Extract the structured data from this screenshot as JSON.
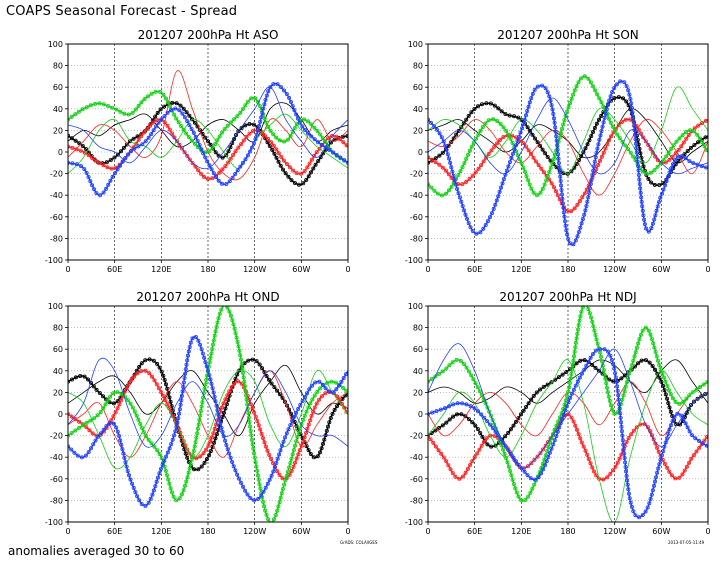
{
  "title": "COAPS Seasonal Forecast - Spread",
  "footnote": "anomalies averaged 30 to 60",
  "credit": "GrADS: COLA/IGES",
  "timestamp": "2013-07-05-11:49",
  "colors": {
    "black": "#000000",
    "red": "#ff2020",
    "green": "#10d010",
    "blue": "#2040ff"
  },
  "chart_data": [
    {
      "type": "line",
      "title_parts": [
        "201207",
        "200hPa Ht",
        "ASO"
      ],
      "xticks": [
        "0",
        "60E",
        "120E",
        "180",
        "120W",
        "60W",
        "0"
      ],
      "yticks": [
        "100",
        "80",
        "60",
        "40",
        "20",
        "0",
        "-20",
        "-40",
        "-60",
        "-80",
        "-100"
      ],
      "ylim": [
        -100,
        100
      ],
      "xlabel": "",
      "ylabel": "",
      "grid": true,
      "series": [
        {
          "name": "black-1",
          "color": "black",
          "marker": "circle",
          "values": [
            15,
            5,
            -10,
            -5,
            10,
            20,
            40,
            45,
            30,
            10,
            -5,
            20,
            25,
            5,
            -20,
            -30,
            -10,
            10,
            15
          ]
        },
        {
          "name": "black-2",
          "color": "black",
          "marker": "none",
          "values": [
            10,
            20,
            15,
            25,
            30,
            35,
            20,
            5,
            10,
            25,
            30,
            20,
            10,
            40,
            45,
            30,
            10,
            20,
            25
          ]
        },
        {
          "name": "red-1",
          "color": "red",
          "marker": "circle",
          "values": [
            5,
            0,
            -10,
            -15,
            0,
            20,
            30,
            10,
            -10,
            -25,
            -15,
            5,
            20,
            10,
            -10,
            -20,
            0,
            15,
            5
          ]
        },
        {
          "name": "red-2",
          "color": "red",
          "marker": "none",
          "values": [
            -5,
            10,
            25,
            20,
            5,
            -5,
            15,
            75,
            40,
            0,
            -20,
            -25,
            -5,
            30,
            20,
            5,
            30,
            10,
            20
          ]
        },
        {
          "name": "green-1",
          "color": "green",
          "marker": "circle",
          "values": [
            30,
            40,
            45,
            40,
            35,
            50,
            55,
            30,
            10,
            0,
            20,
            35,
            50,
            20,
            10,
            30,
            20,
            0,
            -10
          ]
        },
        {
          "name": "green-2",
          "color": "green",
          "marker": "none",
          "values": [
            -20,
            -5,
            20,
            30,
            10,
            5,
            -5,
            10,
            30,
            20,
            0,
            -15,
            10,
            25,
            35,
            20,
            5,
            -5,
            -15
          ]
        },
        {
          "name": "blue-1",
          "color": "blue",
          "marker": "circle",
          "values": [
            -10,
            -15,
            -40,
            -20,
            0,
            10,
            30,
            40,
            20,
            -10,
            -30,
            -15,
            10,
            60,
            55,
            25,
            10,
            0,
            -10
          ]
        },
        {
          "name": "blue-2",
          "color": "blue",
          "marker": "none",
          "values": [
            25,
            20,
            5,
            0,
            -10,
            5,
            20,
            10,
            -10,
            -15,
            0,
            20,
            40,
            60,
            30,
            10,
            -5,
            15,
            30
          ]
        }
      ]
    },
    {
      "type": "line",
      "title_parts": [
        "201207",
        "200hPa Ht",
        "SON"
      ],
      "xticks": [
        "0",
        "60E",
        "120E",
        "180",
        "120W",
        "60W",
        "0"
      ],
      "yticks": [
        "100",
        "80",
        "60",
        "40",
        "20",
        "0",
        "-20",
        "-40",
        "-60",
        "-80",
        "-100"
      ],
      "ylim": [
        -100,
        100
      ],
      "xlabel": "",
      "ylabel": "",
      "grid": true,
      "series": [
        {
          "name": "black-1",
          "color": "black",
          "marker": "circle",
          "values": [
            -10,
            0,
            20,
            40,
            45,
            35,
            30,
            10,
            -10,
            -20,
            0,
            30,
            50,
            40,
            -20,
            -30,
            -10,
            5,
            15
          ]
        },
        {
          "name": "black-2",
          "color": "black",
          "marker": "none",
          "values": [
            20,
            25,
            30,
            20,
            10,
            0,
            10,
            25,
            20,
            10,
            -5,
            0,
            20,
            40,
            30,
            10,
            -10,
            0,
            10
          ]
        },
        {
          "name": "red-1",
          "color": "red",
          "marker": "circle",
          "values": [
            -5,
            -15,
            -30,
            -20,
            0,
            15,
            10,
            -10,
            -30,
            -55,
            -40,
            -10,
            20,
            30,
            10,
            -10,
            0,
            20,
            30
          ]
        },
        {
          "name": "red-2",
          "color": "red",
          "marker": "none",
          "values": [
            10,
            5,
            15,
            30,
            20,
            0,
            -10,
            5,
            20,
            10,
            -20,
            -40,
            -20,
            10,
            30,
            20,
            0,
            -20,
            10
          ]
        },
        {
          "name": "green-1",
          "color": "green",
          "marker": "circle",
          "values": [
            -30,
            -40,
            -20,
            10,
            30,
            20,
            -10,
            -40,
            -10,
            40,
            70,
            50,
            20,
            0,
            -20,
            -10,
            10,
            20,
            0
          ]
        },
        {
          "name": "green-2",
          "color": "green",
          "marker": "none",
          "values": [
            20,
            30,
            25,
            10,
            -5,
            10,
            30,
            20,
            0,
            -20,
            10,
            40,
            30,
            10,
            -10,
            20,
            60,
            40,
            20
          ]
        },
        {
          "name": "blue-1",
          "color": "blue",
          "marker": "circle",
          "values": [
            30,
            10,
            -40,
            -75,
            -60,
            -20,
            20,
            60,
            40,
            -80,
            -60,
            10,
            60,
            50,
            -70,
            -40,
            -5,
            -10,
            -15
          ]
        },
        {
          "name": "blue-2",
          "color": "blue",
          "marker": "none",
          "values": [
            0,
            10,
            20,
            10,
            -10,
            -20,
            0,
            30,
            50,
            30,
            0,
            -20,
            -10,
            20,
            10,
            -10,
            -20,
            -15,
            -10
          ]
        }
      ]
    },
    {
      "type": "line",
      "title_parts": [
        "201207",
        "200hPa Ht",
        "OND"
      ],
      "xticks": [
        "0",
        "60E",
        "120E",
        "180",
        "120W",
        "60W",
        "0"
      ],
      "yticks": [
        "100",
        "80",
        "60",
        "40",
        "20",
        "0",
        "-20",
        "-40",
        "-60",
        "-80",
        "-100"
      ],
      "ylim": [
        -100,
        100
      ],
      "xlabel": "",
      "ylabel": "",
      "grid": true,
      "series": [
        {
          "name": "black-1",
          "color": "black",
          "marker": "circle",
          "values": [
            30,
            35,
            20,
            10,
            30,
            50,
            40,
            -10,
            -50,
            -40,
            0,
            40,
            50,
            30,
            10,
            -20,
            -40,
            0,
            20
          ]
        },
        {
          "name": "black-2",
          "color": "black",
          "marker": "none",
          "values": [
            10,
            20,
            30,
            35,
            20,
            0,
            10,
            30,
            40,
            20,
            0,
            -20,
            10,
            30,
            45,
            20,
            0,
            10,
            5
          ]
        },
        {
          "name": "red-1",
          "color": "red",
          "marker": "circle",
          "values": [
            0,
            -10,
            -20,
            0,
            30,
            40,
            20,
            -10,
            -40,
            -30,
            10,
            30,
            0,
            -40,
            -60,
            -30,
            10,
            20,
            0
          ]
        },
        {
          "name": "red-2",
          "color": "red",
          "marker": "none",
          "values": [
            -10,
            0,
            10,
            -20,
            -40,
            -20,
            10,
            30,
            10,
            -20,
            -40,
            -10,
            20,
            40,
            10,
            -30,
            -10,
            10,
            20
          ]
        },
        {
          "name": "green-1",
          "color": "green",
          "marker": "circle",
          "values": [
            -20,
            -10,
            0,
            20,
            10,
            -20,
            -40,
            -80,
            -40,
            40,
            100,
            60,
            -40,
            -100,
            -60,
            -10,
            20,
            30,
            20
          ]
        },
        {
          "name": "green-2",
          "color": "green",
          "marker": "none",
          "values": [
            20,
            10,
            -20,
            -50,
            -40,
            -10,
            10,
            -10,
            -40,
            -20,
            20,
            40,
            30,
            -10,
            -30,
            0,
            40,
            20,
            0
          ]
        },
        {
          "name": "blue-1",
          "color": "blue",
          "marker": "circle",
          "values": [
            -30,
            -40,
            -20,
            -10,
            -60,
            -85,
            -50,
            -10,
            70,
            40,
            -20,
            -60,
            -80,
            -60,
            -20,
            10,
            30,
            20,
            40
          ]
        },
        {
          "name": "blue-2",
          "color": "blue",
          "marker": "none",
          "values": [
            -10,
            10,
            50,
            40,
            0,
            -30,
            -20,
            10,
            30,
            10,
            -20,
            -10,
            20,
            40,
            20,
            -10,
            -20,
            -20,
            -30
          ]
        }
      ]
    },
    {
      "type": "line",
      "title_parts": [
        "201207",
        "200hPa Ht",
        "NDJ"
      ],
      "xticks": [
        "0",
        "60E",
        "120E",
        "180",
        "120W",
        "60W",
        "0"
      ],
      "yticks": [
        "100",
        "80",
        "60",
        "40",
        "20",
        "0",
        "-20",
        "-40",
        "-60",
        "-80",
        "-100"
      ],
      "ylim": [
        -100,
        100
      ],
      "xlabel": "",
      "ylabel": "",
      "grid": true,
      "series": [
        {
          "name": "black-1",
          "color": "black",
          "marker": "circle",
          "values": [
            -20,
            -10,
            0,
            -10,
            -30,
            -20,
            0,
            20,
            30,
            40,
            50,
            40,
            30,
            40,
            50,
            30,
            -10,
            10,
            20
          ]
        },
        {
          "name": "black-2",
          "color": "black",
          "marker": "none",
          "values": [
            20,
            25,
            20,
            10,
            15,
            25,
            20,
            10,
            20,
            30,
            40,
            50,
            45,
            30,
            20,
            40,
            50,
            30,
            10
          ]
        },
        {
          "name": "red-1",
          "color": "red",
          "marker": "circle",
          "values": [
            -20,
            -40,
            -60,
            -40,
            -20,
            -30,
            -50,
            -40,
            -20,
            0,
            -30,
            -60,
            -50,
            -20,
            -10,
            -40,
            -60,
            -40,
            -20
          ]
        },
        {
          "name": "red-2",
          "color": "red",
          "marker": "none",
          "values": [
            0,
            -20,
            -10,
            10,
            20,
            10,
            -10,
            -20,
            0,
            20,
            10,
            -10,
            10,
            30,
            10,
            -20,
            0,
            20,
            30
          ]
        },
        {
          "name": "green-1",
          "color": "green",
          "marker": "circle",
          "values": [
            30,
            40,
            50,
            30,
            0,
            -40,
            -80,
            -60,
            -20,
            20,
            100,
            60,
            0,
            40,
            80,
            40,
            10,
            20,
            30
          ]
        },
        {
          "name": "green-2",
          "color": "green",
          "marker": "none",
          "values": [
            -20,
            0,
            20,
            10,
            -20,
            -40,
            -20,
            10,
            30,
            50,
            10,
            -60,
            -100,
            -40,
            10,
            40,
            20,
            0,
            -10
          ]
        },
        {
          "name": "blue-1",
          "color": "blue",
          "marker": "circle",
          "values": [
            0,
            5,
            10,
            5,
            -10,
            -30,
            -50,
            -60,
            -30,
            10,
            40,
            60,
            40,
            -80,
            -90,
            -40,
            0,
            -20,
            -30
          ]
        },
        {
          "name": "blue-2",
          "color": "blue",
          "marker": "none",
          "values": [
            20,
            50,
            65,
            40,
            0,
            -30,
            -50,
            -40,
            -20,
            0,
            20,
            40,
            60,
            30,
            -10,
            -30,
            -10,
            10,
            20
          ]
        }
      ]
    }
  ]
}
